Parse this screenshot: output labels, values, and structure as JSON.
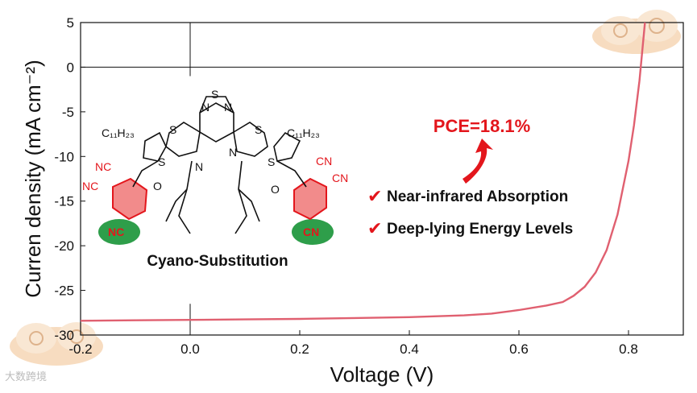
{
  "chart_data": {
    "type": "line",
    "xlabel": "Voltage (V)",
    "ylabel": "Curren density (mA cm⁻²)",
    "xlim": [
      -0.2,
      0.9
    ],
    "ylim": [
      -30,
      5
    ],
    "xticks": [
      "-0.2",
      "0.0",
      "0.2",
      "0.4",
      "0.6",
      "0.8"
    ],
    "yticks": [
      "5",
      "0",
      "-5",
      "-10",
      "-15",
      "-20",
      "-25",
      "-30"
    ],
    "series": [
      {
        "color": "#e06070",
        "x": [
          -0.2,
          -0.1,
          0.0,
          0.1,
          0.2,
          0.3,
          0.4,
          0.5,
          0.55,
          0.6,
          0.65,
          0.68,
          0.7,
          0.72,
          0.74,
          0.76,
          0.78,
          0.8,
          0.81,
          0.82,
          0.83
        ],
        "y": [
          -28.4,
          -28.35,
          -28.3,
          -28.25,
          -28.2,
          -28.1,
          -28.0,
          -27.8,
          -27.6,
          -27.2,
          -26.7,
          -26.3,
          -25.6,
          -24.6,
          -23.0,
          -20.5,
          -16.5,
          -10.5,
          -6.5,
          -1.5,
          5.0
        ]
      }
    ],
    "grid": false
  },
  "annotations": {
    "pce": "PCE=18.1%",
    "features": [
      "Near-infrared Absorption",
      "Deep-lying Energy Levels"
    ],
    "check_mark": "✔",
    "molecule_caption": "Cyano-Substitution",
    "atom_labels": {
      "s": "S",
      "n": "N",
      "o": "O",
      "nc": "NC",
      "cn": "CN",
      "alkyl": "C₁₁H₂₃"
    }
  },
  "watermark": "大数跨境",
  "colors": {
    "curve": "#e06070",
    "accent_red": "#e3161c",
    "highlight_green": "#2e9e4a"
  }
}
